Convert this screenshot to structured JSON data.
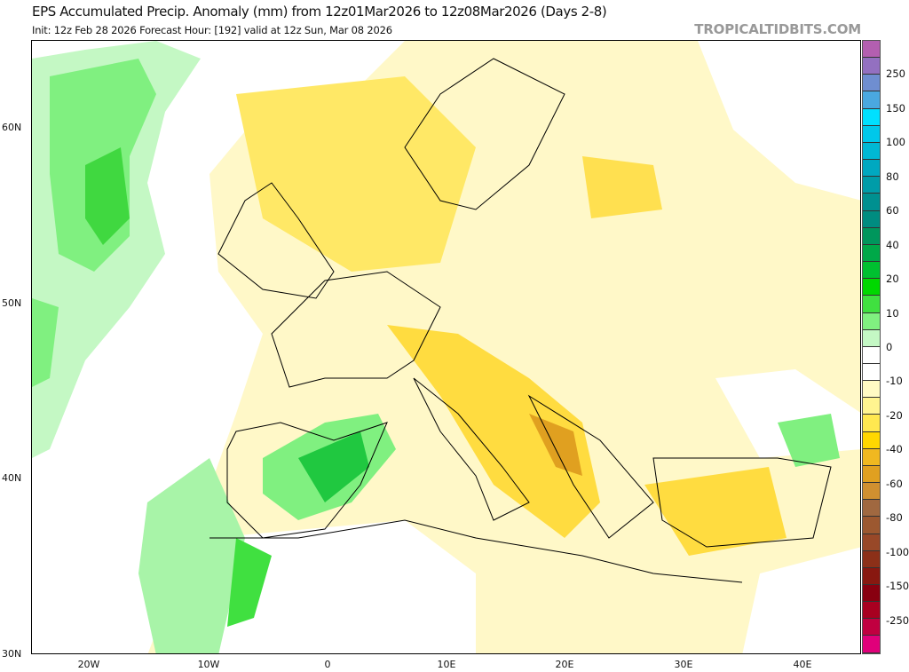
{
  "header": {
    "title": "EPS Accumulated Precip. Anomaly (mm) from 12z01Mar2026 to 12z08Mar2026 (Days 2-8)",
    "subtitle": "Init: 12z Feb 28 2026   Forecast Hour: [192]   valid at 12z Sun, Mar 08 2026",
    "brand": "TROPICALTIDBITS.COM"
  },
  "map": {
    "region": "Europe / North Africa",
    "lat_labels": [
      "60N",
      "50N",
      "40N",
      "30N"
    ],
    "lon_labels": [
      "20W",
      "10W",
      "0",
      "10E",
      "20E",
      "30E",
      "40E"
    ]
  },
  "colorbar": {
    "unit": "mm",
    "labels": [
      "250",
      "150",
      "100",
      "80",
      "60",
      "40",
      "20",
      "10",
      "0",
      "-10",
      "-20",
      "-40",
      "-60",
      "-80",
      "-100",
      "-150",
      "-250"
    ],
    "colors": [
      "#b35fb0",
      "#9370c0",
      "#6f8ed0",
      "#4aa8e0",
      "#00e0ff",
      "#00c8ea",
      "#00b8d4",
      "#00a8c0",
      "#009ca8",
      "#009090",
      "#008c80",
      "#00965c",
      "#00a848",
      "#00c030",
      "#00d800",
      "#40e040",
      "#80f080",
      "#c4f8c4",
      "#ffffff",
      "#ffffff",
      "#fffac4",
      "#fff490",
      "#ffe850",
      "#ffd700",
      "#f0b820",
      "#e0a020",
      "#d09030",
      "#a06840",
      "#9c5830",
      "#984828",
      "#8c3018",
      "#881810",
      "#880010",
      "#a80020",
      "#c00040",
      "#e0007a"
    ]
  }
}
